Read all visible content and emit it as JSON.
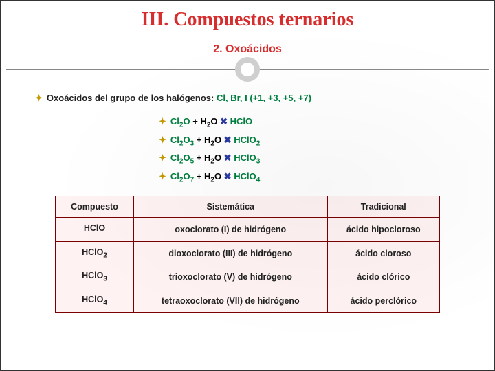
{
  "title": "III. Compuestos ternarios",
  "subtitle": "2. Oxoácidos",
  "lead": {
    "bullet": "✦",
    "text_before": "Oxoácidos del grupo de los halógenos: ",
    "halogens": "Cl, Br, I (+1, +3, +5, +7)"
  },
  "reactions": [
    {
      "lhs_oxide": "Cl",
      "lhs_oxide_sub": "2",
      "ox_suffix": "O",
      "ox_sub2": "",
      "plus": " + H",
      "h_sub": "2",
      "o2": "O ",
      "arrow": "✖",
      "prod": " HClO",
      "prod_sub": ""
    },
    {
      "lhs_oxide": "Cl",
      "lhs_oxide_sub": "2",
      "ox_suffix": "O",
      "ox_sub2": "3",
      "plus": " + H",
      "h_sub": "2",
      "o2": "O ",
      "arrow": "✖",
      "prod": " HClO",
      "prod_sub": "2"
    },
    {
      "lhs_oxide": "Cl",
      "lhs_oxide_sub": "2",
      "ox_suffix": "O",
      "ox_sub2": "5",
      "plus": " + H",
      "h_sub": "2",
      "o2": "O ",
      "arrow": "✖",
      "prod": " HClO",
      "prod_sub": "3"
    },
    {
      "lhs_oxide": "Cl",
      "lhs_oxide_sub": "2",
      "ox_suffix": "O",
      "ox_sub2": "7",
      "plus": " + H",
      "h_sub": "2",
      "o2": "O ",
      "arrow": "✖",
      "prod": " HClO",
      "prod_sub": "4"
    }
  ],
  "table": {
    "headers": [
      "Compuesto",
      "Sistemática",
      "Tradicional"
    ],
    "rows": [
      {
        "comp": "HClO",
        "comp_sub": "",
        "sist": "oxoclorato (I) de hidrógeno",
        "trad": "ácido hipocloroso"
      },
      {
        "comp": "HClO",
        "comp_sub": "2",
        "sist": "dioxoclorato (III) de hidrógeno",
        "trad": "ácido cloroso"
      },
      {
        "comp": "HClO",
        "comp_sub": "3",
        "sist": "trioxoclorato (V) de hidrógeno",
        "trad": "ácido clórico"
      },
      {
        "comp": "HClO",
        "comp_sub": "4",
        "sist": "tetraoxoclorato (VII) de hidrógeno",
        "trad": "ácido perclórico"
      }
    ]
  },
  "colors": {
    "title": "#d62e2e",
    "bullet": "#c49a00",
    "halogen_green": "#008040",
    "arrow_blue": "#2a3aa0",
    "table_border": "#7a0000",
    "table_bg": "#fff2f2"
  }
}
